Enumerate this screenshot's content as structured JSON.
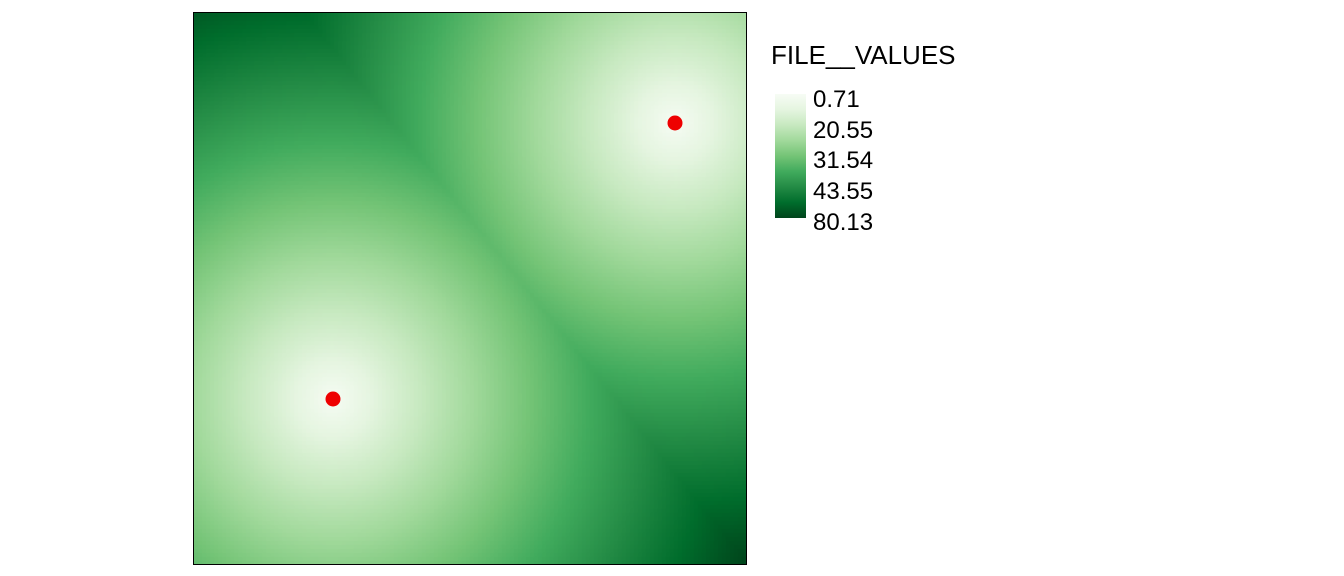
{
  "legend": {
    "title": "FILE__VALUES",
    "color_low": "#f7fcf5",
    "color_high": "#00441b",
    "breaks": [
      "0.71",
      "20.55",
      "31.54",
      "43.55",
      "80.13"
    ]
  },
  "raster": {
    "palette": [
      "#f7fcf5",
      "#e5f5e0",
      "#c7e9c0",
      "#a1d99b",
      "#74c476",
      "#41ab5d",
      "#238b45",
      "#006d2c",
      "#00441b"
    ],
    "value_min": 0.71,
    "value_max": 80.13
  },
  "points": [
    {
      "name": "point-northeast",
      "color": "#ee0000"
    },
    {
      "name": "point-southwest",
      "color": "#ee0000"
    }
  ]
}
